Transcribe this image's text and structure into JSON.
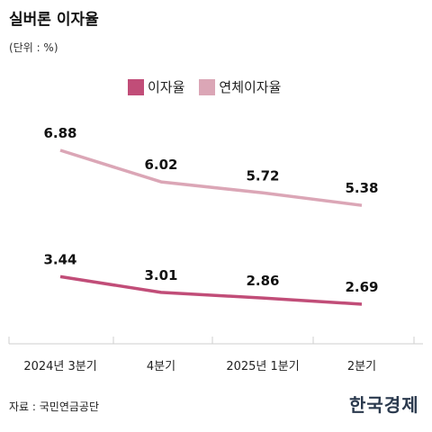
{
  "title": "실버론 이자율",
  "unit_note": "(단위 : %)",
  "source": "자료 : 국민연금공단",
  "logo": "한국경제",
  "colors": {
    "series_rate": "#c14d78",
    "series_overdue": "#dba6b6",
    "axis": "#cfcfcf"
  },
  "chart_data": {
    "type": "line",
    "categories": [
      "2024년 3분기",
      "4분기",
      "2025년 1분기",
      "2분기"
    ],
    "series": [
      {
        "name": "이자율",
        "values": [
          3.44,
          3.01,
          2.86,
          2.69
        ],
        "labels": [
          "3.44",
          "3.01",
          "2.86",
          "2.69"
        ]
      },
      {
        "name": "연체이자율",
        "values": [
          6.88,
          6.02,
          5.72,
          5.38
        ],
        "labels": [
          "6.88",
          "6.02",
          "5.72",
          "5.38"
        ]
      }
    ],
    "grid": false,
    "legend_position": "top-center"
  }
}
